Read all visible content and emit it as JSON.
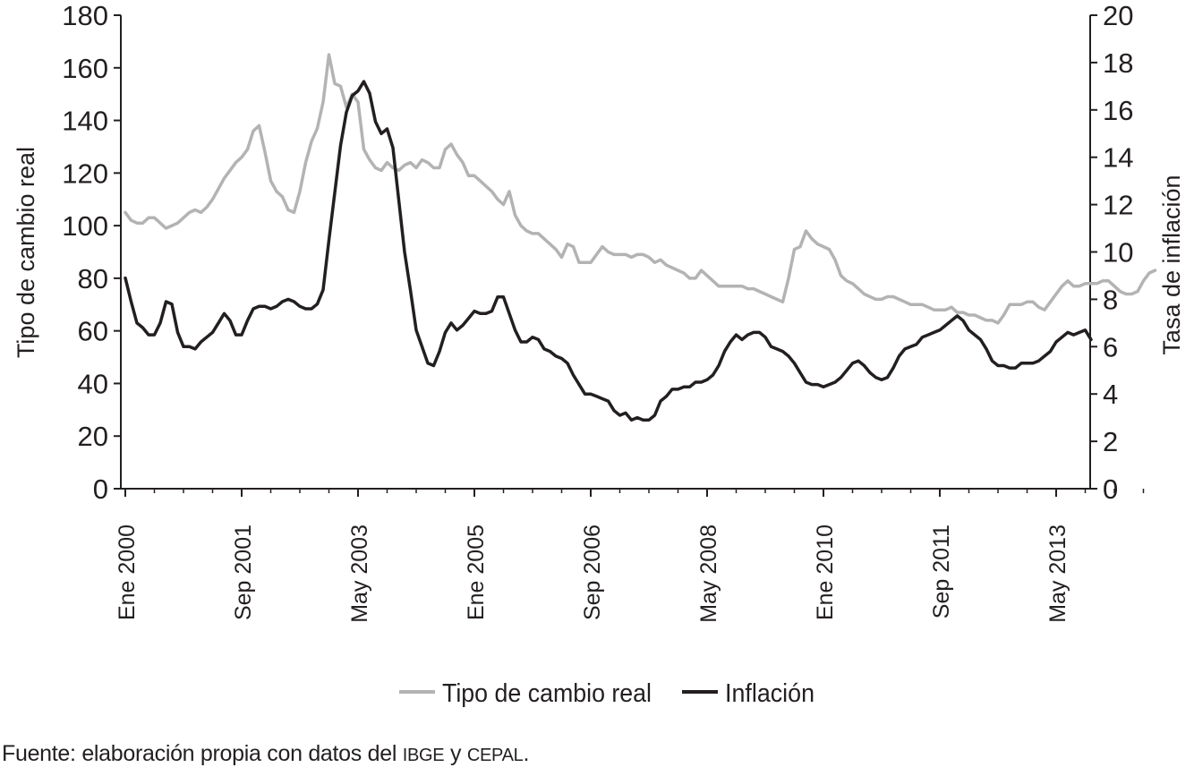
{
  "chart_data": {
    "type": "line",
    "title": "",
    "ylabel_left": "Tipo de cambio real",
    "ylabel_right": "Tasa de inflación",
    "ylim_left": [
      0,
      180
    ],
    "ylim_right": [
      0,
      20
    ],
    "yticks_left": [
      "0",
      "20",
      "40",
      "60",
      "80",
      "100",
      "120",
      "140",
      "160",
      "180"
    ],
    "yticks_right": [
      "0",
      "2",
      "4",
      "6",
      "8",
      "10",
      "12",
      "14",
      "16",
      "18",
      "20"
    ],
    "x_start": "Ene 2000",
    "x_end": "Sep 2013",
    "x_tick_labels": [
      "Ene 2000",
      "Sep 2001",
      "May 2003",
      "Ene 2005",
      "Sep 2006",
      "May 2008",
      "Ene 2010",
      "Sep 2011",
      "May 2013"
    ],
    "legend_position": "bottom",
    "grid": false,
    "series": [
      {
        "name": "Tipo de cambio real",
        "axis": "left",
        "color": "#b3b3b3",
        "values": [
          105,
          102,
          101,
          101,
          103,
          103,
          101,
          99,
          100,
          101,
          103,
          105,
          106,
          105,
          107,
          110,
          114,
          118,
          121,
          124,
          126,
          129,
          136,
          138,
          128,
          117,
          113,
          111,
          106,
          105,
          113,
          124,
          132,
          137,
          147,
          165,
          154,
          153,
          145,
          150,
          147,
          129,
          125,
          122,
          121,
          124,
          122,
          121,
          123,
          124,
          122,
          125,
          124,
          122,
          122,
          129,
          131,
          127,
          124,
          119,
          119,
          117,
          115,
          113,
          110,
          108,
          113,
          104,
          100,
          98,
          97,
          97,
          95,
          93,
          91,
          88,
          93,
          92,
          86,
          86,
          86,
          89,
          92,
          90,
          89,
          89,
          89,
          88,
          89,
          89,
          88,
          86,
          87,
          85,
          84,
          83,
          82,
          80,
          80,
          83,
          81,
          79,
          77,
          77,
          77,
          77,
          77,
          76,
          76,
          75,
          74,
          73,
          72,
          71,
          80,
          91,
          92,
          98,
          95,
          93,
          92,
          91,
          87,
          81,
          79,
          78,
          76,
          74,
          73,
          72,
          72,
          73,
          73,
          72,
          71,
          70,
          70,
          70,
          69,
          68,
          68,
          68,
          69,
          67,
          67,
          66,
          66,
          65,
          64,
          64,
          63,
          66,
          70,
          70,
          70,
          71,
          71,
          69,
          68,
          71,
          74,
          77,
          79,
          77,
          77,
          78,
          78,
          78,
          79,
          79,
          77,
          75,
          74,
          74,
          75,
          79,
          82,
          83
        ]
      },
      {
        "name": "Inflación",
        "axis": "right",
        "color": "#231f20",
        "values": [
          8.9,
          7.9,
          7.0,
          6.8,
          6.5,
          6.5,
          7.0,
          7.9,
          7.8,
          6.6,
          6.0,
          6.0,
          5.9,
          6.2,
          6.4,
          6.6,
          7.0,
          7.4,
          7.1,
          6.5,
          6.5,
          7.1,
          7.6,
          7.7,
          7.7,
          7.6,
          7.7,
          7.9,
          8.0,
          7.9,
          7.7,
          7.6,
          7.6,
          7.8,
          8.4,
          10.5,
          12.5,
          14.5,
          15.9,
          16.6,
          16.8,
          17.2,
          16.7,
          15.5,
          15.0,
          15.2,
          14.4,
          12.2,
          10.0,
          8.4,
          6.7,
          6.0,
          5.3,
          5.2,
          5.8,
          6.6,
          7.0,
          6.7,
          6.9,
          7.2,
          7.5,
          7.4,
          7.4,
          7.5,
          8.1,
          8.1,
          7.4,
          6.7,
          6.2,
          6.2,
          6.4,
          6.3,
          5.9,
          5.8,
          5.6,
          5.5,
          5.3,
          4.8,
          4.4,
          4.0,
          4.0,
          3.9,
          3.8,
          3.7,
          3.3,
          3.1,
          3.2,
          2.9,
          3.0,
          2.9,
          2.9,
          3.1,
          3.7,
          3.9,
          4.2,
          4.2,
          4.3,
          4.3,
          4.5,
          4.5,
          4.6,
          4.8,
          5.2,
          5.8,
          6.2,
          6.5,
          6.3,
          6.5,
          6.6,
          6.6,
          6.4,
          6.0,
          5.9,
          5.8,
          5.6,
          5.3,
          4.9,
          4.5,
          4.4,
          4.4,
          4.3,
          4.4,
          4.5,
          4.7,
          5.0,
          5.3,
          5.4,
          5.2,
          4.9,
          4.7,
          4.6,
          4.7,
          5.1,
          5.6,
          5.9,
          6.0,
          6.1,
          6.4,
          6.5,
          6.6,
          6.7,
          6.9,
          7.1,
          7.3,
          7.1,
          6.7,
          6.5,
          6.3,
          5.9,
          5.4,
          5.2,
          5.2,
          5.1,
          5.1,
          5.3,
          5.3,
          5.3,
          5.4,
          5.6,
          5.8,
          6.2,
          6.4,
          6.6,
          6.5,
          6.6,
          6.7,
          6.3
        ]
      }
    ]
  },
  "source": {
    "text_before": "Fuente: elaboración propia con datos del ",
    "org1": "IBGE",
    "connector": " y ",
    "org2": "CEPAL",
    "text_after": "."
  }
}
